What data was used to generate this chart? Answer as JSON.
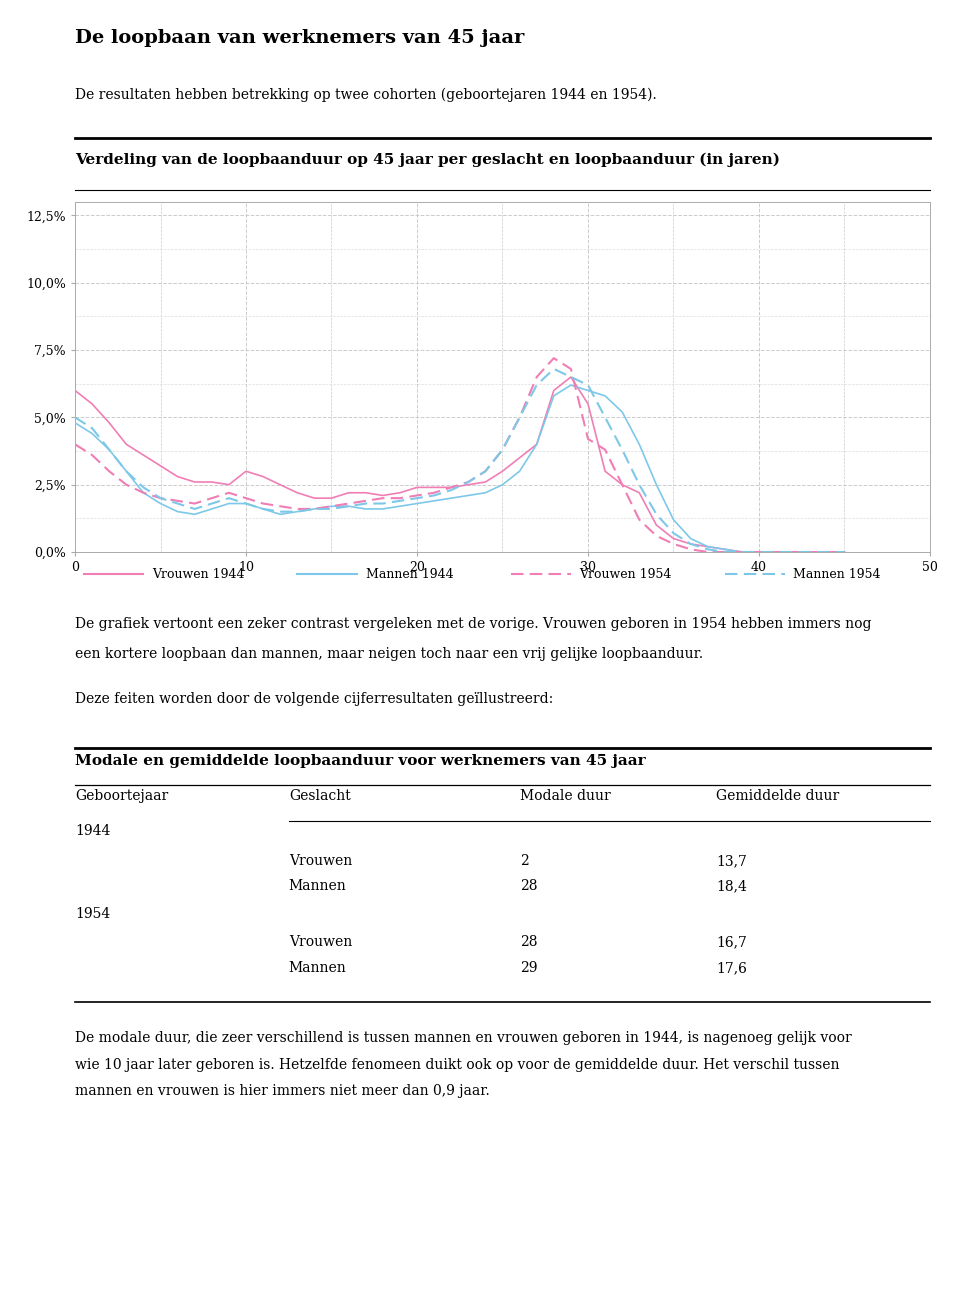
{
  "title": "De loopbaan van werknemers van 45 jaar",
  "subtitle": "De resultaten hebben betrekking op twee cohorten (geboortejaren 1944 en 1954).",
  "chart_section_title": "Verdeling van de loopbaanduur op 45 jaar per geslacht en loopbaanduur (in jaren)",
  "ylim_max": 0.13,
  "xlim": [
    0,
    50
  ],
  "yticks": [
    0.0,
    0.025,
    0.05,
    0.075,
    0.1,
    0.125
  ],
  "ytick_labels": [
    "0,0%",
    "2,5%",
    "5,0%",
    "7,5%",
    "10,0%",
    "12,5%"
  ],
  "xticks": [
    0,
    10,
    20,
    30,
    40,
    50
  ],
  "color_pink": "#F07EB5",
  "color_blue": "#7DC8E8",
  "body_text1_line1": "De grafiek vertoont een zeker contrast vergeleken met de vorige. Vrouwen geboren in 1954 hebben immers nog",
  "body_text1_line2": "een kortere loopbaan dan mannen, maar neigen toch naar een vrij gelijke loopbaanduur.",
  "body_text2": "Deze feiten worden door de volgende cijferresultaten geïllustreerd:",
  "table_title": "Modale en gemiddelde loopbaanduur voor werknemers van 45 jaar",
  "col_headers": [
    "Geboortejaar",
    "Geslacht",
    "Modale duur",
    "Gemiddelde duur"
  ],
  "footer_text_line1": "De modale duur, die zeer verschillend is tussen mannen en vrouwen geboren in 1944, is nagenoeg gelijk voor",
  "footer_text_line2": "wie 10 jaar later geboren is. Hetzelfde fenomeen duikt ook op voor de gemiddelde duur. Het verschil tussen",
  "footer_text_line3": "mannen en vrouwen is hier immers niet meer dan 0,9 jaar.",
  "vrouwen_1944_x": [
    0,
    1,
    2,
    3,
    4,
    5,
    6,
    7,
    8,
    9,
    10,
    11,
    12,
    13,
    14,
    15,
    16,
    17,
    18,
    19,
    20,
    21,
    22,
    23,
    24,
    25,
    26,
    27,
    28,
    29,
    30,
    31,
    32,
    33,
    34,
    35,
    36,
    37,
    38,
    39,
    40,
    41,
    42,
    43,
    44,
    45
  ],
  "vrouwen_1944_y": [
    0.06,
    0.055,
    0.048,
    0.04,
    0.036,
    0.032,
    0.028,
    0.026,
    0.026,
    0.025,
    0.03,
    0.028,
    0.025,
    0.022,
    0.02,
    0.02,
    0.022,
    0.022,
    0.021,
    0.022,
    0.024,
    0.024,
    0.024,
    0.025,
    0.026,
    0.03,
    0.035,
    0.04,
    0.06,
    0.065,
    0.055,
    0.03,
    0.025,
    0.022,
    0.01,
    0.005,
    0.003,
    0.002,
    0.001,
    0.0,
    0.0,
    0.0,
    0.0,
    0.0,
    0.0,
    0.0
  ],
  "mannen_1944_x": [
    0,
    1,
    2,
    3,
    4,
    5,
    6,
    7,
    8,
    9,
    10,
    11,
    12,
    13,
    14,
    15,
    16,
    17,
    18,
    19,
    20,
    21,
    22,
    23,
    24,
    25,
    26,
    27,
    28,
    29,
    30,
    31,
    32,
    33,
    34,
    35,
    36,
    37,
    38,
    39,
    40,
    41,
    42,
    43,
    44,
    45
  ],
  "mannen_1944_y": [
    0.048,
    0.044,
    0.038,
    0.03,
    0.022,
    0.018,
    0.015,
    0.014,
    0.016,
    0.018,
    0.018,
    0.016,
    0.014,
    0.015,
    0.016,
    0.017,
    0.017,
    0.016,
    0.016,
    0.017,
    0.018,
    0.019,
    0.02,
    0.021,
    0.022,
    0.025,
    0.03,
    0.04,
    0.058,
    0.062,
    0.06,
    0.058,
    0.052,
    0.04,
    0.025,
    0.012,
    0.005,
    0.002,
    0.001,
    0.0,
    0.0,
    0.0,
    0.0,
    0.0,
    0.0,
    0.0
  ],
  "vrouwen_1954_x": [
    0,
    1,
    2,
    3,
    4,
    5,
    6,
    7,
    8,
    9,
    10,
    11,
    12,
    13,
    14,
    15,
    16,
    17,
    18,
    19,
    20,
    21,
    22,
    23,
    24,
    25,
    26,
    27,
    28,
    29,
    30,
    31,
    32,
    33,
    34,
    35,
    36,
    37,
    38,
    39,
    40,
    41,
    42,
    43,
    44,
    45
  ],
  "vrouwen_1954_y": [
    0.04,
    0.036,
    0.03,
    0.025,
    0.022,
    0.02,
    0.019,
    0.018,
    0.02,
    0.022,
    0.02,
    0.018,
    0.017,
    0.016,
    0.016,
    0.017,
    0.018,
    0.019,
    0.02,
    0.02,
    0.021,
    0.022,
    0.024,
    0.026,
    0.03,
    0.038,
    0.05,
    0.065,
    0.072,
    0.068,
    0.042,
    0.038,
    0.025,
    0.012,
    0.006,
    0.003,
    0.001,
    0.0,
    0.0,
    0.0,
    0.0,
    0.0,
    0.0,
    0.0,
    0.0,
    0.0
  ],
  "mannen_1954_x": [
    0,
    1,
    2,
    3,
    4,
    5,
    6,
    7,
    8,
    9,
    10,
    11,
    12,
    13,
    14,
    15,
    16,
    17,
    18,
    19,
    20,
    21,
    22,
    23,
    24,
    25,
    26,
    27,
    28,
    29,
    30,
    31,
    32,
    33,
    34,
    35,
    36,
    37,
    38,
    39,
    40,
    41,
    42,
    43,
    44,
    45
  ],
  "mannen_1954_y": [
    0.05,
    0.046,
    0.038,
    0.03,
    0.024,
    0.02,
    0.018,
    0.016,
    0.018,
    0.02,
    0.018,
    0.016,
    0.015,
    0.015,
    0.016,
    0.016,
    0.017,
    0.018,
    0.018,
    0.019,
    0.02,
    0.021,
    0.023,
    0.026,
    0.03,
    0.038,
    0.05,
    0.062,
    0.068,
    0.065,
    0.062,
    0.05,
    0.038,
    0.025,
    0.014,
    0.007,
    0.003,
    0.001,
    0.0,
    0.0,
    0.0,
    0.0,
    0.0,
    0.0,
    0.0,
    0.0
  ]
}
